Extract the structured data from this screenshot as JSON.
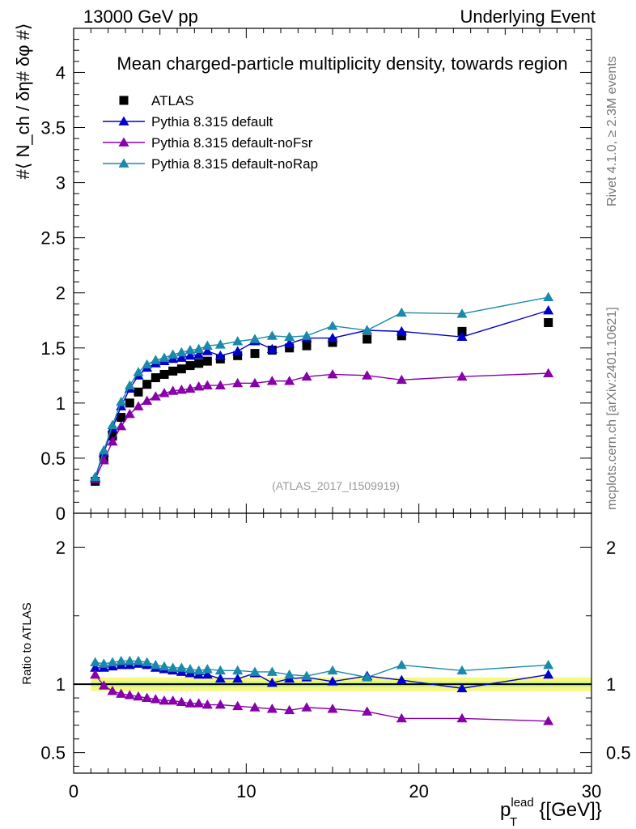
{
  "header": {
    "left": "13000 GeV pp",
    "right": "Underlying Event"
  },
  "side_labels": {
    "rivet": "Rivet 4.1.0, ≥ 2.3M events",
    "mcplots": "mcplots.cern.ch [arXiv:2401.10621]"
  },
  "chart_data": [
    {
      "type": "scatter",
      "panel": "main",
      "title": "Mean charged-particle multiplicity density, towards region",
      "watermark": "(ATLAS_2017_I1509919)",
      "ylabel": "#⟨ N_ch / δη# δφ #⟩",
      "xlim": [
        0,
        30
      ],
      "ylim": [
        0,
        4.4
      ],
      "yticks": [
        "0",
        "0.5",
        "1",
        "1.5",
        "2",
        "2.5",
        "3",
        "3.5",
        "4"
      ],
      "ytick_values": [
        0,
        0.5,
        1,
        1.5,
        2,
        2.5,
        3,
        3.5,
        4
      ],
      "x": [
        1.25,
        1.75,
        2.25,
        2.75,
        3.25,
        3.75,
        4.25,
        4.75,
        5.25,
        5.75,
        6.25,
        6.75,
        7.25,
        7.75,
        8.5,
        9.5,
        10.5,
        11.5,
        12.5,
        13.5,
        15,
        17,
        19,
        22.5,
        27.5
      ],
      "series": [
        {
          "name": "ATLAS",
          "color": "#000000",
          "marker": "square",
          "values": [
            0.29,
            0.49,
            0.7,
            0.87,
            1.0,
            1.1,
            1.17,
            1.23,
            1.26,
            1.29,
            1.31,
            1.34,
            1.36,
            1.38,
            1.4,
            1.43,
            1.45,
            1.48,
            1.5,
            1.52,
            1.55,
            1.58,
            1.61,
            1.65,
            1.73
          ]
        },
        {
          "name": "Pythia 8.315 default",
          "color": "#0000cc",
          "marker": "triangle",
          "values": [
            0.32,
            0.55,
            0.77,
            0.97,
            1.13,
            1.25,
            1.32,
            1.36,
            1.38,
            1.4,
            1.41,
            1.43,
            1.44,
            1.47,
            1.43,
            1.47,
            1.56,
            1.49,
            1.54,
            1.59,
            1.59,
            1.66,
            1.65,
            1.6,
            1.84
          ]
        },
        {
          "name": "Pythia 8.315 default-noFsr",
          "color": "#8800aa",
          "marker": "triangle",
          "values": [
            0.31,
            0.48,
            0.65,
            0.79,
            0.9,
            0.97,
            1.02,
            1.06,
            1.09,
            1.11,
            1.12,
            1.13,
            1.15,
            1.16,
            1.16,
            1.18,
            1.18,
            1.2,
            1.2,
            1.24,
            1.26,
            1.25,
            1.21,
            1.24,
            1.27
          ]
        },
        {
          "name": "Pythia 8.315 default-noRap",
          "color": "#1a8aaa",
          "marker": "triangle",
          "values": [
            0.33,
            0.57,
            0.8,
            1.01,
            1.16,
            1.28,
            1.35,
            1.39,
            1.41,
            1.44,
            1.46,
            1.48,
            1.49,
            1.52,
            1.53,
            1.56,
            1.58,
            1.61,
            1.6,
            1.61,
            1.7,
            1.66,
            1.82,
            1.81,
            1.96
          ]
        }
      ]
    },
    {
      "type": "scatter",
      "panel": "ratio",
      "ylabel": "Ratio to ATLAS",
      "xlabel_main": "p",
      "xlabel_sub": "T",
      "xlabel_sup": "lead",
      "xlabel_unit": " {[GeV]}",
      "xlim": [
        0,
        30
      ],
      "ylim": [
        0.35,
        2.25
      ],
      "xticks": [
        "0",
        "10",
        "20",
        "30"
      ],
      "xtick_values": [
        0,
        10,
        20,
        30
      ],
      "yticks": [
        "0.5",
        "1",
        "2"
      ],
      "ytick_values": [
        0.5,
        1,
        2
      ],
      "ytick_labels_right": [
        "0.5",
        "1",
        "2"
      ],
      "x": [
        1.25,
        1.75,
        2.25,
        2.75,
        3.25,
        3.75,
        4.25,
        4.75,
        5.25,
        5.75,
        6.25,
        6.75,
        7.25,
        7.75,
        8.5,
        9.5,
        10.5,
        11.5,
        12.5,
        13.5,
        15,
        17,
        19,
        22.5,
        27.5
      ],
      "series": [
        {
          "name": "Pythia 8.315 default",
          "color": "#0000cc",
          "values": [
            1.12,
            1.12,
            1.13,
            1.14,
            1.14,
            1.15,
            1.14,
            1.12,
            1.11,
            1.1,
            1.09,
            1.08,
            1.07,
            1.07,
            1.04,
            1.04,
            1.08,
            1.01,
            1.04,
            1.05,
            1.02,
            1.06,
            1.03,
            0.97,
            1.07
          ]
        },
        {
          "name": "Pythia 8.315 default-noFsr",
          "color": "#8800aa",
          "values": [
            1.07,
            0.99,
            0.95,
            0.93,
            0.92,
            0.91,
            0.9,
            0.89,
            0.88,
            0.88,
            0.87,
            0.86,
            0.86,
            0.85,
            0.85,
            0.84,
            0.83,
            0.82,
            0.81,
            0.83,
            0.82,
            0.8,
            0.75,
            0.75,
            0.73
          ]
        },
        {
          "name": "Pythia 8.315 default-noRap",
          "color": "#1a8aaa",
          "values": [
            1.16,
            1.15,
            1.16,
            1.17,
            1.17,
            1.17,
            1.16,
            1.14,
            1.13,
            1.12,
            1.12,
            1.11,
            1.1,
            1.11,
            1.1,
            1.1,
            1.09,
            1.09,
            1.07,
            1.06,
            1.1,
            1.05,
            1.14,
            1.1,
            1.14
          ]
        }
      ]
    }
  ]
}
